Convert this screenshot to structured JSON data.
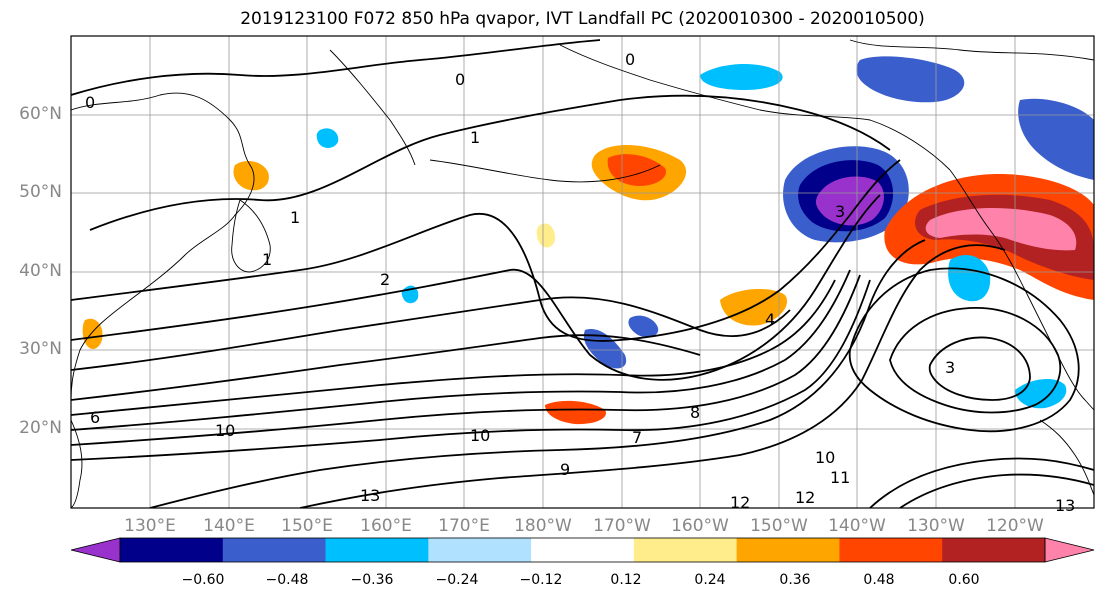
{
  "title": "2019123100 F072 850 hPa qvapor, IVT Landfall PC (2020010300 - 2020010500)",
  "lat_labels": [
    "60°N",
    "50°N",
    "40°N",
    "30°N",
    "20°N"
  ],
  "lon_labels": [
    "130°E",
    "140°E",
    "150°E",
    "160°E",
    "170°E",
    "180°W",
    "170°W",
    "160°W",
    "150°W",
    "140°W",
    "130°W",
    "120°W"
  ],
  "colorbar": {
    "colors": [
      "#9932cc",
      "#00008b",
      "#3a5fcd",
      "#00bfff",
      "#b0e2ff",
      "#ffffff",
      "#ffec8b",
      "#ffa500",
      "#ff4500",
      "#b22222",
      "#ff82ab"
    ],
    "tick_labels": [
      "−0.60",
      "−0.48",
      "−0.36",
      "−0.24",
      "−0.12",
      "0.12",
      "0.24",
      "0.36",
      "0.48",
      "0.60"
    ]
  },
  "contour_labels": [
    "0",
    "0",
    "0",
    "1",
    "1",
    "1",
    "2",
    "3",
    "3",
    "4",
    "6",
    "7",
    "8",
    "9",
    "10",
    "10",
    "10",
    "11",
    "12",
    "12",
    "13",
    "13"
  ],
  "features": {
    "negative_anomaly_color": "#9932cc",
    "positive_anomaly_color": "#ff82ab"
  }
}
